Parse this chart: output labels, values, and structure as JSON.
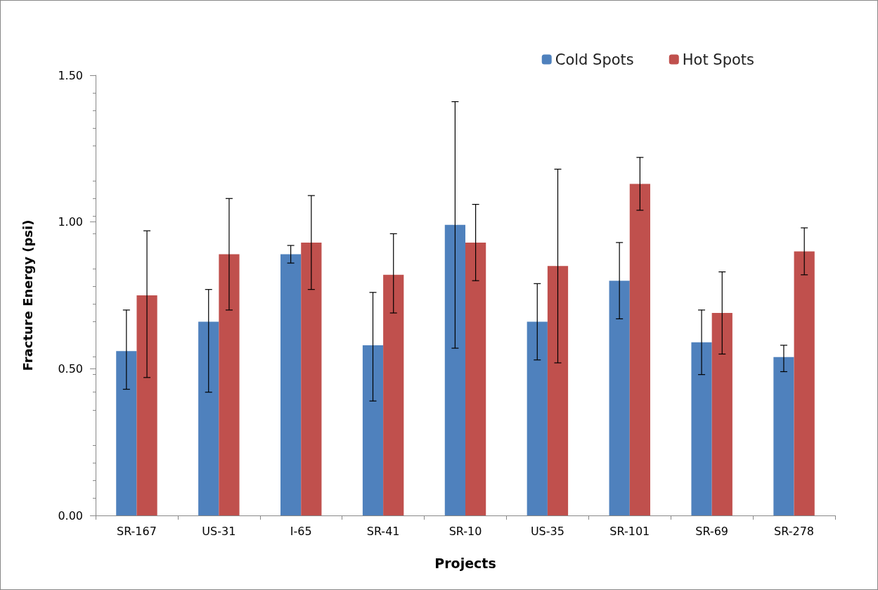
{
  "chart_data": {
    "type": "bar",
    "xlabel": "Projects",
    "ylabel": "Fracture Energy (psi)",
    "categories": [
      "SR-167",
      "US-31",
      "I-65",
      "SR-41",
      "SR-10",
      "US-35",
      "SR-101",
      "SR-69",
      "SR-278"
    ],
    "series": [
      {
        "name": "Cold Spots",
        "color": "#4f81bd",
        "values": [
          0.56,
          0.66,
          0.89,
          0.58,
          0.99,
          0.66,
          0.8,
          0.59,
          0.54
        ],
        "errors": [
          [
            0.43,
            0.7
          ],
          [
            0.42,
            0.77
          ],
          [
            0.86,
            0.92
          ],
          [
            0.39,
            0.76
          ],
          [
            0.57,
            1.41
          ],
          [
            0.53,
            0.79
          ],
          [
            0.67,
            0.93
          ],
          [
            0.48,
            0.7
          ],
          [
            0.49,
            0.58
          ]
        ]
      },
      {
        "name": "Hot Spots",
        "color": "#c0504d",
        "values": [
          0.75,
          0.89,
          0.93,
          0.82,
          0.93,
          0.85,
          1.13,
          0.69,
          0.9
        ],
        "errors": [
          [
            0.47,
            0.97
          ],
          [
            0.7,
            1.08
          ],
          [
            0.77,
            1.09
          ],
          [
            0.69,
            0.96
          ],
          [
            0.8,
            1.06
          ],
          [
            0.52,
            1.18
          ],
          [
            1.04,
            1.22
          ],
          [
            0.55,
            0.83
          ],
          [
            0.82,
            0.98
          ]
        ]
      }
    ],
    "ylim": [
      0,
      1.5
    ],
    "yticks": [
      {
        "value": 0,
        "label": "0.00"
      },
      {
        "value": 0.5,
        "label": "0.50"
      },
      {
        "value": 1,
        "label": "1.00"
      },
      {
        "value": 1.5,
        "label": "1.50"
      }
    ],
    "grid": false,
    "legend": "top right"
  }
}
